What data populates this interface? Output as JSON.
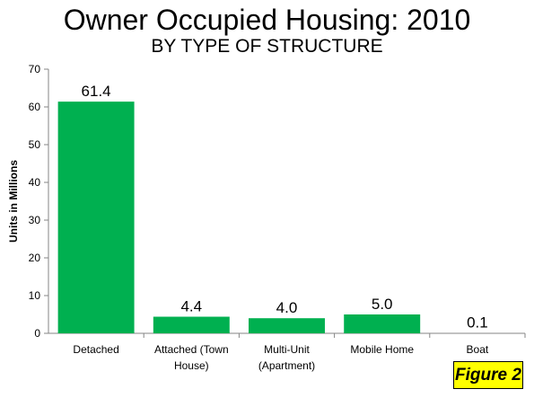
{
  "chart_data": {
    "type": "bar",
    "title": "Owner Occupied Housing: 2010",
    "subtitle": "BY TYPE OF STRUCTURE",
    "ylabel": "Units in Millions",
    "xlabel": "",
    "categories": [
      [
        "Detached"
      ],
      [
        "Attached (Town",
        "House)"
      ],
      [
        "Multi-Unit",
        "(Apartment)"
      ],
      [
        "Mobile Home"
      ],
      [
        "Boat"
      ]
    ],
    "values": [
      61.4,
      4.4,
      4.0,
      5.0,
      0.1
    ],
    "data_labels": [
      "61.4",
      "4.4",
      "4.0",
      "5.0",
      "0.1"
    ],
    "ylim": [
      0,
      70
    ],
    "yticks": [
      0,
      10,
      20,
      30,
      40,
      50,
      60,
      70
    ],
    "grid": false,
    "bar_color": "#00b050"
  },
  "badge": "Figure 2"
}
